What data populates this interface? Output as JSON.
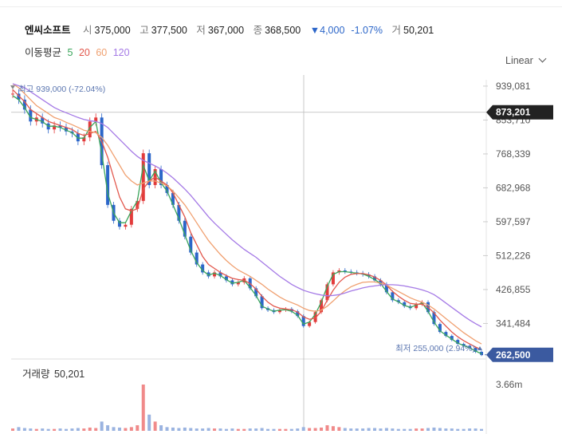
{
  "header": {
    "name": "엔씨소프트",
    "open_label": "시",
    "open": "375,000",
    "high_label": "고",
    "high": "377,500",
    "low_label": "저",
    "low": "367,000",
    "close_label": "종",
    "close": "368,500",
    "change": "▼4,000",
    "change_pct": "-1.07%",
    "volume_label": "거",
    "volume": "50,201"
  },
  "moving_average": {
    "label": "이동평균",
    "periods": [
      {
        "period": "5",
        "color": "#3aa55b"
      },
      {
        "period": "20",
        "color": "#e2574c"
      },
      {
        "period": "60",
        "color": "#f0a070"
      },
      {
        "period": "120",
        "color": "#a57ae6"
      }
    ]
  },
  "scale_label": "Linear",
  "annotations": {
    "max_label": "최고 939,000 (-72.04%)",
    "min_label": "최저 255,000 (2.94%)",
    "crosshair_value": "873,201",
    "current_value": "262,500"
  },
  "volume_panel": {
    "label": "거래량",
    "value": "50,201",
    "axis_label": "3.66m"
  },
  "colors": {
    "up": "#e23b3b",
    "down": "#2c66c9",
    "ma5": "#3aa55b",
    "ma20": "#e2574c",
    "ma60": "#f0a070",
    "ma120": "#a57ae6",
    "crosshair_badge": "#222222",
    "current_badge": "#3b5aa0"
  },
  "chart_data": {
    "type": "line",
    "title": "엔씨소프트",
    "y_ticks": [
      "939,081",
      "853,710",
      "768,339",
      "682,968",
      "597,597",
      "512,226",
      "426,855",
      "341,484"
    ],
    "ylim": [
      262000,
      955000
    ],
    "close": [
      920000,
      905000,
      880000,
      850000,
      860000,
      845000,
      830000,
      840000,
      835000,
      825000,
      820000,
      800000,
      810000,
      850000,
      860000,
      740000,
      640000,
      600000,
      585000,
      590000,
      630000,
      650000,
      770000,
      690000,
      730000,
      690000,
      670000,
      640000,
      600000,
      560000,
      520000,
      490000,
      470000,
      460000,
      470000,
      460000,
      450000,
      440000,
      445000,
      455000,
      430000,
      410000,
      380000,
      375000,
      370000,
      375000,
      378000,
      372000,
      360000,
      335000,
      345000,
      370000,
      400000,
      440000,
      470000,
      475000,
      472000,
      470000,
      468000,
      465000,
      460000,
      450000,
      440000,
      420000,
      400000,
      395000,
      385000,
      380000,
      390000,
      395000,
      370000,
      340000,
      320000,
      310000,
      300000,
      290000,
      285000,
      280000,
      270000,
      262500
    ],
    "series": [
      {
        "name": "5",
        "values": [
          915000,
          905000,
          885000,
          860000,
          855000,
          850000,
          838000,
          838000,
          835000,
          828000,
          822000,
          808000,
          808000,
          835000,
          850000,
          770000,
          670000,
          620000,
          595000,
          595000,
          625000,
          650000,
          740000,
          700000,
          725000,
          695000,
          675000,
          640000,
          605000,
          565000,
          525000,
          495000,
          475000,
          463000,
          468000,
          462000,
          452000,
          443000,
          445000,
          450000,
          432000,
          412000,
          385000,
          378000,
          372000,
          375000,
          376000,
          372000,
          362000,
          340000,
          345000,
          365000,
          395000,
          435000,
          465000,
          472000,
          472000,
          470000,
          468000,
          466000,
          460000,
          452000,
          442000,
          422000,
          403000,
          396000,
          387000,
          382000,
          388000,
          393000,
          372000,
          345000,
          323000,
          312000,
          302000,
          292000,
          286000,
          280000,
          272000,
          265000
        ]
      },
      {
        "name": "20",
        "values": [
          930000,
          915000,
          900000,
          880000,
          870000,
          860000,
          850000,
          845000,
          840000,
          835000,
          830000,
          820000,
          815000,
          820000,
          825000,
          800000,
          760000,
          710000,
          660000,
          630000,
          625000,
          630000,
          680000,
          700000,
          710000,
          700000,
          690000,
          670000,
          640000,
          610000,
          570000,
          540000,
          510000,
          490000,
          480000,
          470000,
          462000,
          455000,
          452000,
          450000,
          442000,
          428000,
          410000,
          395000,
          385000,
          380000,
          378000,
          376000,
          370000,
          358000,
          352000,
          355000,
          372000,
          400000,
          425000,
          445000,
          458000,
          465000,
          467000,
          467000,
          464000,
          458000,
          450000,
          438000,
          422000,
          410000,
          400000,
          392000,
          390000,
          390000,
          382000,
          368000,
          350000,
          335000,
          320000,
          308000,
          298000,
          290000,
          282000,
          275000
        ]
      },
      {
        "name": "60",
        "values": [
          945000,
          935000,
          920000,
          905000,
          890000,
          880000,
          870000,
          860000,
          855000,
          848000,
          842000,
          835000,
          828000,
          825000,
          822000,
          810000,
          790000,
          765000,
          740000,
          715000,
          700000,
          690000,
          695000,
          700000,
          700000,
          695000,
          688000,
          675000,
          658000,
          640000,
          618000,
          595000,
          572000,
          550000,
          532000,
          515000,
          500000,
          487000,
          476000,
          468000,
          460000,
          450000,
          440000,
          428000,
          418000,
          408000,
          400000,
          394000,
          388000,
          380000,
          374000,
          372000,
          375000,
          385000,
          398000,
          412000,
          424000,
          434000,
          440000,
          445000,
          446000,
          446000,
          443000,
          438000,
          430000,
          422000,
          414000,
          406000,
          400000,
          395000,
          388000,
          378000,
          366000,
          354000,
          342000,
          330000,
          318000,
          308000,
          298000,
          290000
        ]
      },
      {
        "name": "120",
        "values": [
          945000,
          940000,
          935000,
          925000,
          915000,
          905000,
          895000,
          885000,
          878000,
          872000,
          866000,
          860000,
          855000,
          852000,
          850000,
          845000,
          835000,
          820000,
          805000,
          790000,
          775000,
          762000,
          752000,
          745000,
          738000,
          730000,
          720000,
          708000,
          694000,
          680000,
          664000,
          646000,
          628000,
          610000,
          594000,
          580000,
          566000,
          552000,
          540000,
          528000,
          518000,
          508000,
          496000,
          484000,
          472000,
          460000,
          450000,
          440000,
          432000,
          425000,
          420000,
          416000,
          413000,
          411000,
          412000,
          414000,
          418000,
          423000,
          427000,
          431000,
          434000,
          436000,
          438000,
          439000,
          439000,
          438000,
          436000,
          433000,
          430000,
          426000,
          421000,
          414000,
          404000,
          393000,
          382000,
          371000,
          360000,
          350000,
          341000,
          333000
        ]
      }
    ],
    "volume": [
      0.05,
      0.08,
      0.06,
      0.05,
      0.04,
      0.05,
      0.04,
      0.04,
      0.05,
      0.04,
      0.05,
      0.06,
      0.05,
      0.07,
      0.06,
      0.2,
      0.12,
      0.08,
      0.07,
      0.06,
      0.08,
      0.12,
      1.0,
      0.35,
      0.2,
      0.12,
      0.08,
      0.07,
      0.06,
      0.07,
      0.06,
      0.05,
      0.05,
      0.06,
      0.05,
      0.05,
      0.04,
      0.05,
      0.04,
      0.04,
      0.05,
      0.05,
      0.06,
      0.04,
      0.04,
      0.04,
      0.04,
      0.04,
      0.05,
      0.08,
      0.06,
      0.06,
      0.07,
      0.12,
      0.1,
      0.08,
      0.06,
      0.05,
      0.05,
      0.05,
      0.06,
      0.06,
      0.05,
      0.06,
      0.05,
      0.04,
      0.04,
      0.04,
      0.05,
      0.05,
      0.06,
      0.07,
      0.06,
      0.05,
      0.05,
      0.04,
      0.04,
      0.05,
      0.05,
      0.04
    ]
  }
}
